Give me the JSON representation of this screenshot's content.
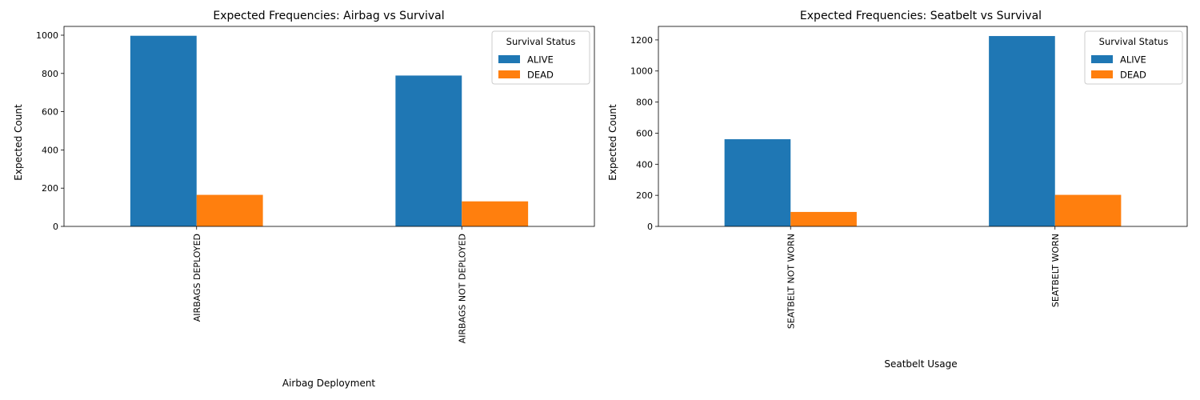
{
  "chart_data": [
    {
      "type": "bar",
      "title": "Expected Frequencies: Airbag vs Survival",
      "xlabel": "Airbag Deployment",
      "ylabel": "Expected Count",
      "categories": [
        "AIRBAGS DEPLOYED",
        "AIRBAGS NOT DEPLOYED"
      ],
      "series": [
        {
          "name": "ALIVE",
          "values": [
            997,
            789
          ],
          "color": "#1f77b4"
        },
        {
          "name": "DEAD",
          "values": [
            165,
            131
          ],
          "color": "#ff7f0e"
        }
      ],
      "ylim": [
        0,
        1046
      ],
      "yticks": [
        0,
        200,
        400,
        600,
        800,
        1000
      ],
      "legend": {
        "title": "Survival Status",
        "placement": "top-right"
      },
      "grid": false
    },
    {
      "type": "bar",
      "title": "Expected Frequencies: Seatbelt vs Survival",
      "xlabel": "Seatbelt Usage",
      "ylabel": "Expected Count",
      "categories": [
        "SEATBELT NOT WORN",
        "SEATBELT WORN"
      ],
      "series": [
        {
          "name": "ALIVE",
          "values": [
            561,
            1225
          ],
          "color": "#1f77b4"
        },
        {
          "name": "DEAD",
          "values": [
            93,
            203
          ],
          "color": "#ff7f0e"
        }
      ],
      "ylim": [
        0,
        1287
      ],
      "yticks": [
        0,
        200,
        400,
        600,
        800,
        1000,
        1200
      ],
      "legend": {
        "title": "Survival Status",
        "placement": "top-right"
      },
      "grid": false
    }
  ]
}
